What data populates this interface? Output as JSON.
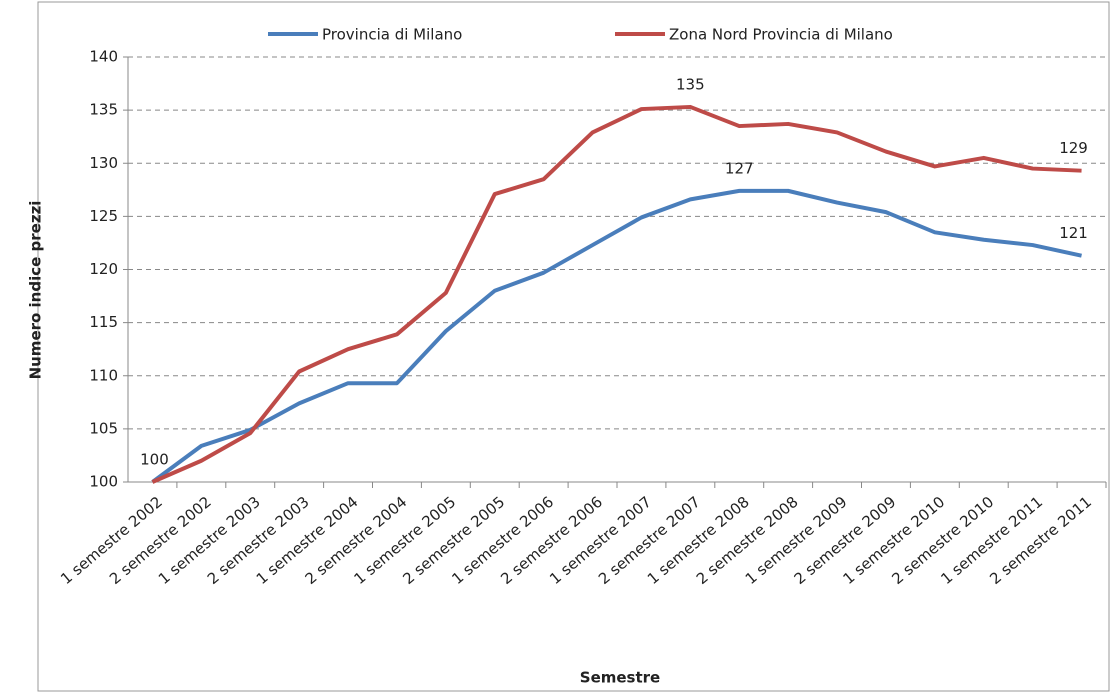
{
  "chart_data": {
    "type": "line",
    "x_label": "Semestre",
    "y_label": "Numero indice prezzi",
    "categories": [
      "1 semestre 2002",
      "2 semestre 2002",
      "1 semestre 2003",
      "2 semestre 2003",
      "1 semestre 2004",
      "2 semestre 2004",
      "1 semestre 2005",
      "2 semestre 2005",
      "1 semestre 2006",
      "2 semestre 2006",
      "1 semestre 2007",
      "2 semestre 2007",
      "1 semestre 2008",
      "2 semestre 2008",
      "1 semestre 2009",
      "2 semestre 2009",
      "1 semestre 2010",
      "2 semestre 2010",
      "1 semestre 2011",
      "2 semestre 2011"
    ],
    "series": [
      {
        "name": "Provincia di Milano",
        "color": "#4a7ebb",
        "values": [
          100,
          103.4,
          104.9,
          107.4,
          109.3,
          109.3,
          114.2,
          118.0,
          119.7,
          122.3,
          124.9,
          126.6,
          127.4,
          127.4,
          126.3,
          125.4,
          123.5,
          122.8,
          122.3,
          121.3
        ],
        "value_labels": [
          "100",
          null,
          null,
          null,
          null,
          null,
          null,
          null,
          null,
          null,
          null,
          null,
          "127",
          null,
          null,
          null,
          null,
          null,
          null,
          "121"
        ]
      },
      {
        "name": "Zona Nord Provincia di Milano",
        "color": "#be4b48",
        "values": [
          100,
          102.0,
          104.6,
          110.4,
          112.5,
          113.9,
          117.8,
          127.1,
          128.5,
          132.9,
          135.1,
          135.3,
          133.5,
          133.7,
          132.9,
          131.1,
          129.7,
          130.5,
          129.5,
          129.3
        ],
        "value_labels": [
          null,
          null,
          null,
          null,
          null,
          null,
          null,
          null,
          null,
          null,
          null,
          "135",
          null,
          null,
          null,
          null,
          null,
          null,
          null,
          "129"
        ]
      }
    ],
    "ylim": [
      100,
      140
    ],
    "yticks": [
      100,
      105,
      110,
      115,
      120,
      125,
      130,
      135,
      140
    ],
    "grid": true,
    "legend": "top"
  }
}
